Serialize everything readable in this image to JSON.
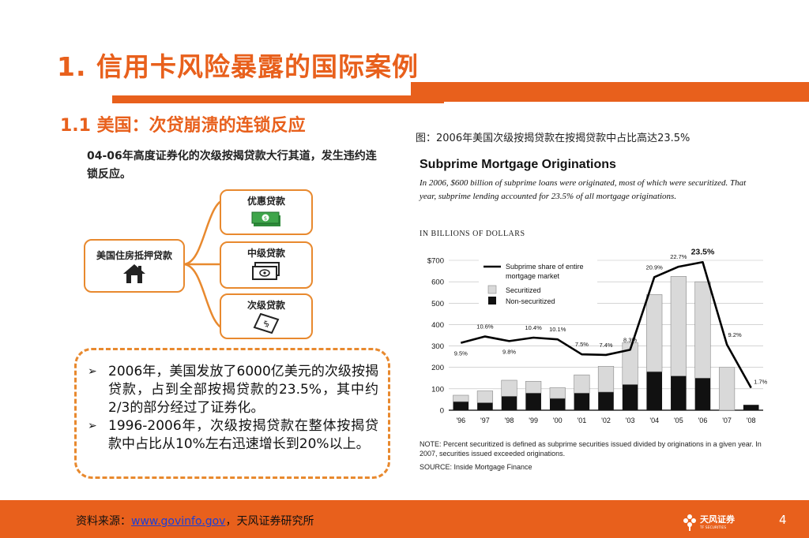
{
  "slide": {
    "title": "1. 信用卡风险暴露的国际案例",
    "section_heading": "1.1 美国：次贷崩溃的连锁反应",
    "lead_text": "04-06年高度证券化的次级按揭贷款大行其道，发生违约连锁反应。",
    "page_number": "4"
  },
  "diagram": {
    "root": {
      "label": "美国住房抵押贷款",
      "icon": "house-icon"
    },
    "branches": [
      {
        "label": "优惠贷款",
        "icon": "cash-stack-icon"
      },
      {
        "label": "中级贷款",
        "icon": "banknotes-icon"
      },
      {
        "label": "次级贷款",
        "icon": "bill-icon"
      }
    ]
  },
  "callout": {
    "items": [
      "2006年，美国发放了6000亿美元的次级按揭贷款，占到全部按揭贷款的23.5%，其中约2/3的部分经过了证券化。",
      "1996-2006年，次级按揭贷款在整体按揭贷款中占比从10%左右迅速增长到20%以上。"
    ]
  },
  "chart_caption": "图：2006年美国次级按揭贷款在按揭贷款中占比高达23.5%",
  "chart_data": {
    "type": "bar",
    "title": "Subprime Mortgage Originations",
    "subtitle": "In 2006, $600 billion of subprime loans were originated, most of which were securitized. That year, subprime lending accounted for 23.5% of all mortgage originations.",
    "unit_label": "IN BILLIONS OF DOLLARS",
    "categories": [
      "'96",
      "'97",
      "'98",
      "'99",
      "'00",
      "'01",
      "'02",
      "'03",
      "'04",
      "'05",
      "'06",
      "'07",
      "'08"
    ],
    "series": [
      {
        "name": "Securitized",
        "values": [
          30,
          55,
          75,
          55,
          50,
          85,
          120,
          195,
          360,
          465,
          450,
          200,
          0
        ],
        "color": "#d9d9d9"
      },
      {
        "name": "Non-securitized",
        "values": [
          40,
          35,
          65,
          80,
          55,
          80,
          85,
          120,
          180,
          160,
          150,
          0,
          25
        ],
        "color": "#111111"
      }
    ],
    "line_series": {
      "name": "Subprime share of entire mortgage market",
      "values": [
        9.5,
        10.6,
        9.8,
        10.4,
        10.1,
        7.5,
        7.4,
        8.3,
        20.9,
        22.7,
        23.5,
        9.2,
        1.7
      ],
      "labels": [
        "9.5%",
        "10.6%",
        "9.8%",
        "10.4%",
        "10.1%",
        "7.5%",
        "7.4%",
        "8.3%",
        "20.9%",
        "22.7%",
        "23.5%",
        "9.2%",
        "1.7%"
      ]
    },
    "yticks": [
      "$700",
      "600",
      "500",
      "400",
      "300",
      "200",
      "100",
      "0"
    ],
    "ylim": [
      0,
      700
    ],
    "grid": true,
    "legend_placement": "top-left",
    "note": "NOTE: Percent securitized is defined as subprime securities issued divided by originations in a given year. In 2007, securities issued exceeded originations.",
    "source": "SOURCE: Inside Mortgage Finance"
  },
  "footer": {
    "source_prefix": "资料来源：",
    "source_link": "www.govinfo.gov",
    "source_suffix": "，天风证券研究所",
    "logo_text": "天风证券",
    "logo_subtext": "TF SECURITIES"
  },
  "colors": {
    "accent": "#e8601c",
    "diagram_border": "#e8892e",
    "money_green": "#3ea54a",
    "link": "#1a3fd8"
  }
}
